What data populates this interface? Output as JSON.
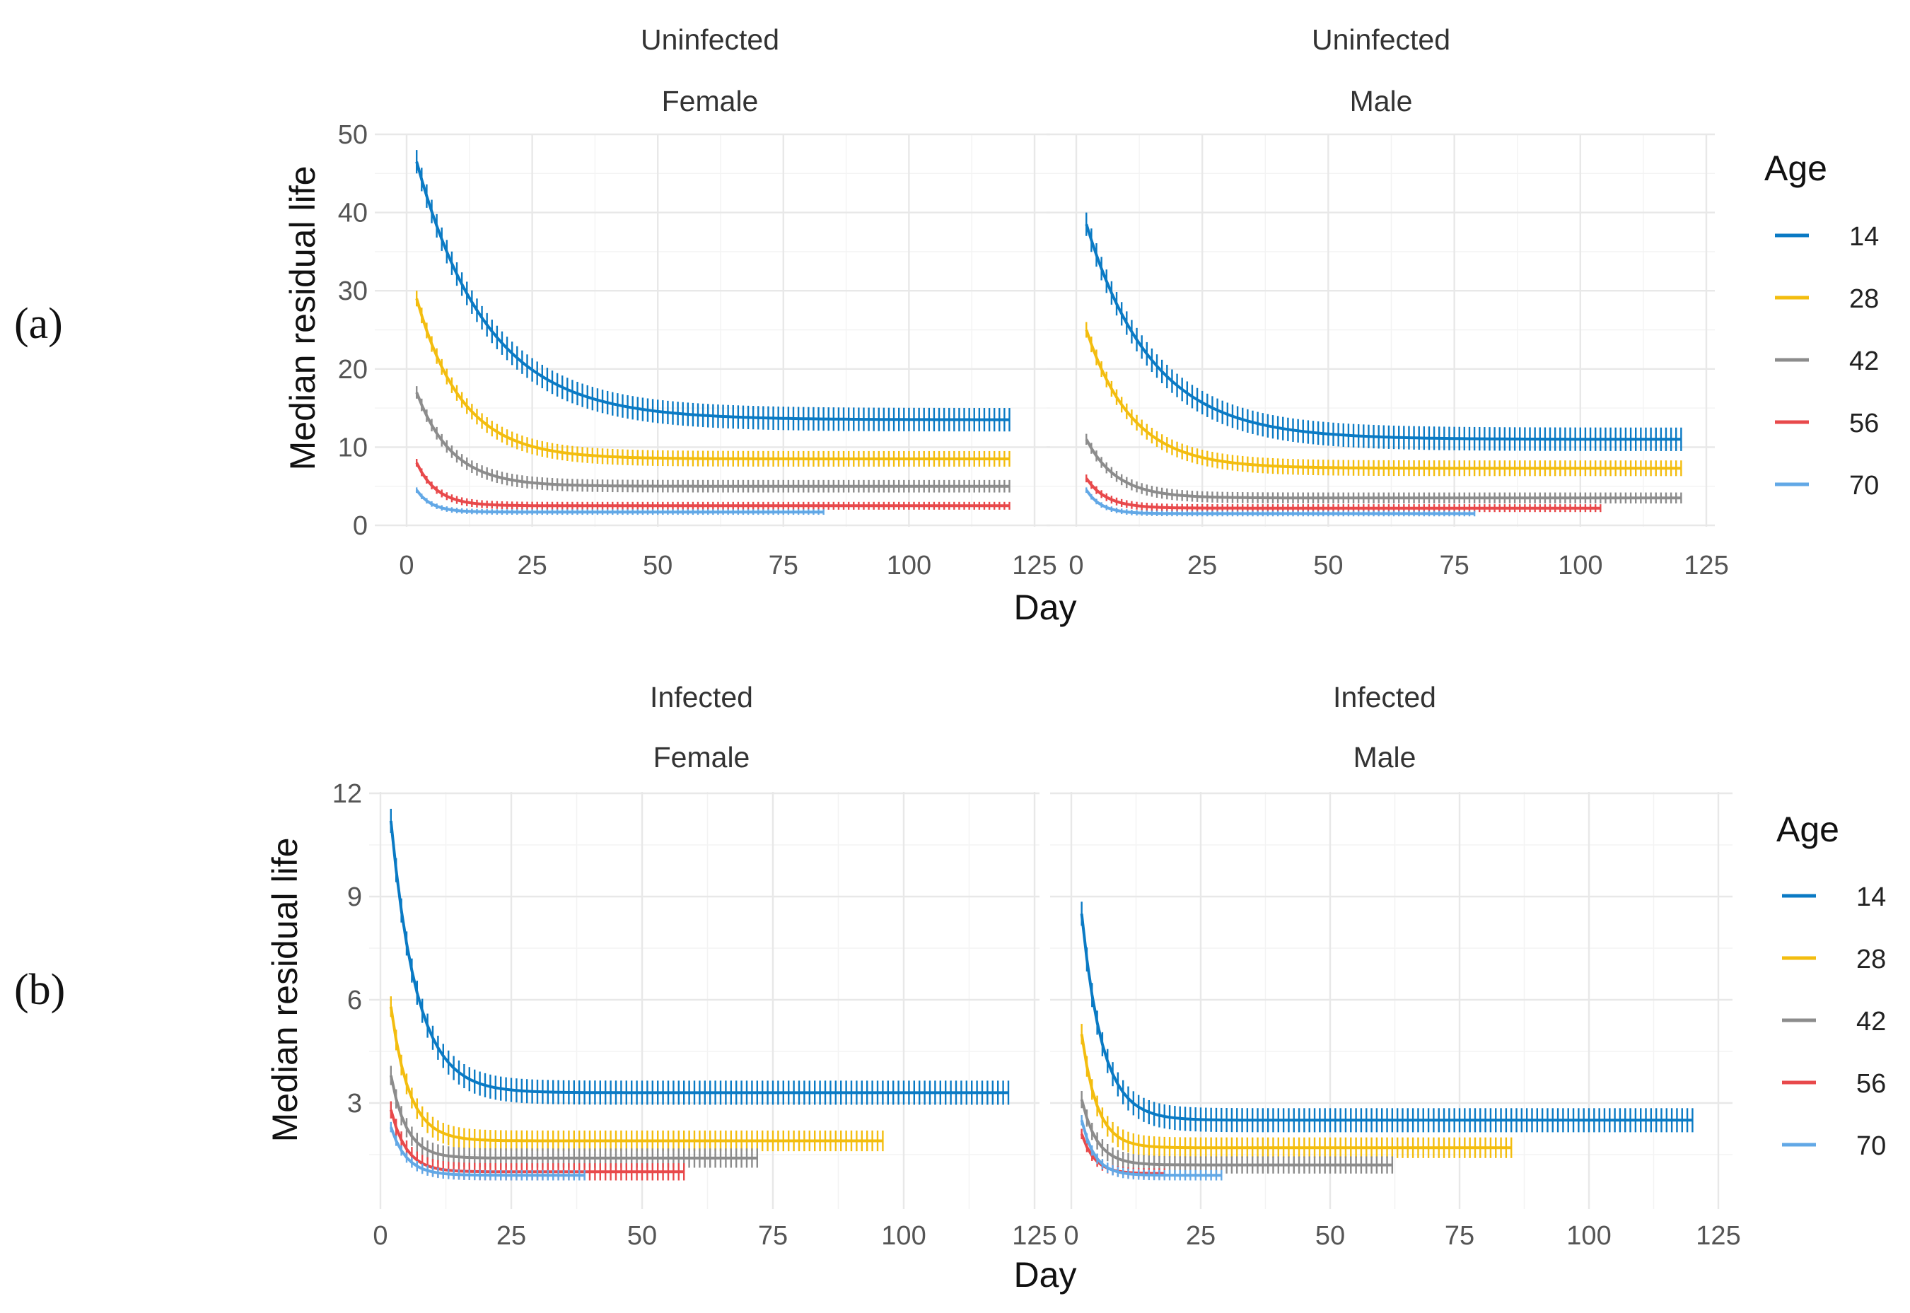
{
  "figure": {
    "rows": [
      {
        "id": "a",
        "label": "(a)",
        "ylabel": "Median residual life",
        "xlabel": "Day",
        "ylim": [
          0,
          50
        ],
        "yticks": [
          0,
          10,
          20,
          30,
          40,
          50
        ],
        "legend": {
          "title": "Age",
          "entries": [
            "14",
            "28",
            "42",
            "56",
            "70"
          ]
        }
      },
      {
        "id": "b",
        "label": "(b)",
        "ylabel": "Median residual life",
        "xlabel": "Day",
        "ylim": [
          0,
          12
        ],
        "yticks": [
          3,
          6,
          9,
          12
        ],
        "legend": {
          "title": "Age",
          "entries": [
            "14",
            "28",
            "42",
            "56",
            "70"
          ]
        }
      }
    ],
    "xlim": [
      0,
      125
    ],
    "xticks": [
      0,
      25,
      50,
      75,
      100,
      125
    ]
  },
  "colors": {
    "14": "#0a7ac4",
    "28": "#f3bd0f",
    "42": "#8c8c8c",
    "56": "#e8494b",
    "70": "#62a8e6"
  },
  "chart_data": [
    {
      "type": "line",
      "title": "Uninfected / Female",
      "strip": [
        "Uninfected",
        "Female"
      ],
      "xlabel": "Day",
      "ylabel": "Median residual life",
      "xlim": [
        0,
        125
      ],
      "ylim": [
        0,
        50
      ],
      "series": [
        {
          "name": "14",
          "y0": 46.5,
          "yinf": 13.5,
          "tau": 14,
          "x_end": 120,
          "err": 1.5
        },
        {
          "name": "28",
          "y0": 29,
          "yinf": 8.5,
          "tau": 9,
          "x_end": 120,
          "err": 1.0
        },
        {
          "name": "42",
          "y0": 17,
          "yinf": 5.0,
          "tau": 7,
          "x_end": 120,
          "err": 0.8
        },
        {
          "name": "56",
          "y0": 8,
          "yinf": 2.5,
          "tau": 4,
          "x_end": 120,
          "err": 0.5
        },
        {
          "name": "70",
          "y0": 4.5,
          "yinf": 1.7,
          "tau": 3,
          "x_end": 83,
          "err": 0.35
        }
      ]
    },
    {
      "type": "line",
      "title": "Uninfected / Male",
      "strip": [
        "Uninfected",
        "Male"
      ],
      "xlabel": "Day",
      "ylabel": "Median residual life",
      "xlim": [
        0,
        125
      ],
      "ylim": [
        0,
        50
      ],
      "series": [
        {
          "name": "14",
          "y0": 38.5,
          "yinf": 11,
          "tau": 13,
          "x_end": 120,
          "err": 1.5
        },
        {
          "name": "28",
          "y0": 25,
          "yinf": 7.3,
          "tau": 9,
          "x_end": 120,
          "err": 1.0
        },
        {
          "name": "42",
          "y0": 11,
          "yinf": 3.5,
          "tau": 6,
          "x_end": 120,
          "err": 0.7
        },
        {
          "name": "56",
          "y0": 6,
          "yinf": 2.2,
          "tau": 4,
          "x_end": 104,
          "err": 0.5
        },
        {
          "name": "70",
          "y0": 4.5,
          "yinf": 1.5,
          "tau": 3,
          "x_end": 79,
          "err": 0.35
        }
      ]
    },
    {
      "type": "line",
      "title": "Infected / Female",
      "strip": [
        "Infected",
        "Female"
      ],
      "xlabel": "Day",
      "ylabel": "Median residual life",
      "xlim": [
        0,
        125
      ],
      "ylim": [
        0,
        12
      ],
      "series": [
        {
          "name": "14",
          "y0": 11.2,
          "yinf": 3.3,
          "tau": 5,
          "x_end": 120,
          "err": 0.35
        },
        {
          "name": "28",
          "y0": 5.8,
          "yinf": 1.9,
          "tau": 3.5,
          "x_end": 96,
          "err": 0.3
        },
        {
          "name": "42",
          "y0": 3.8,
          "yinf": 1.4,
          "tau": 3,
          "x_end": 72,
          "err": 0.28
        },
        {
          "name": "56",
          "y0": 2.8,
          "yinf": 1.0,
          "tau": 3,
          "x_end": 58,
          "err": 0.25
        },
        {
          "name": "70",
          "y0": 2.3,
          "yinf": 0.9,
          "tau": 3,
          "x_end": 39,
          "err": 0.15
        }
      ]
    },
    {
      "type": "line",
      "title": "Infected / Male",
      "strip": [
        "Infected",
        "Male"
      ],
      "xlabel": "Day",
      "ylabel": "Median residual life",
      "xlim": [
        0,
        125
      ],
      "ylim": [
        0,
        12
      ],
      "series": [
        {
          "name": "14",
          "y0": 8.5,
          "yinf": 2.5,
          "tau": 4,
          "x_end": 120,
          "err": 0.35
        },
        {
          "name": "28",
          "y0": 5.0,
          "yinf": 1.7,
          "tau": 3,
          "x_end": 85,
          "err": 0.3
        },
        {
          "name": "42",
          "y0": 3.1,
          "yinf": 1.2,
          "tau": 3,
          "x_end": 62,
          "err": 0.25
        },
        {
          "name": "56",
          "y0": 2.1,
          "yinf": 0.95,
          "tau": 2.5,
          "x_end": 18,
          "err": 0.15
        },
        {
          "name": "70",
          "y0": 2.5,
          "yinf": 0.9,
          "tau": 2.5,
          "x_end": 29,
          "err": 0.15
        }
      ]
    }
  ]
}
